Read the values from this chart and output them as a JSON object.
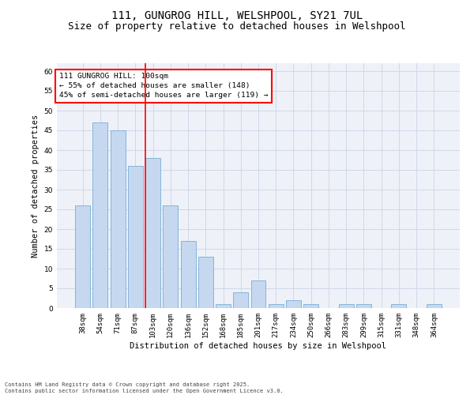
{
  "title_line1": "111, GUNGROG HILL, WELSHPOOL, SY21 7UL",
  "title_line2": "Size of property relative to detached houses in Welshpool",
  "xlabel": "Distribution of detached houses by size in Welshpool",
  "ylabel": "Number of detached properties",
  "categories": [
    "38sqm",
    "54sqm",
    "71sqm",
    "87sqm",
    "103sqm",
    "120sqm",
    "136sqm",
    "152sqm",
    "168sqm",
    "185sqm",
    "201sqm",
    "217sqm",
    "234sqm",
    "250sqm",
    "266sqm",
    "283sqm",
    "299sqm",
    "315sqm",
    "331sqm",
    "348sqm",
    "364sqm"
  ],
  "values": [
    26,
    47,
    45,
    36,
    38,
    26,
    17,
    13,
    1,
    4,
    7,
    1,
    2,
    1,
    0,
    1,
    1,
    0,
    1,
    0,
    1
  ],
  "bar_color": "#c5d8f0",
  "bar_edge_color": "#7aadd4",
  "vline_x": 4,
  "ylim": [
    0,
    62
  ],
  "yticks": [
    0,
    5,
    10,
    15,
    20,
    25,
    30,
    35,
    40,
    45,
    50,
    55,
    60
  ],
  "annotation_text": "111 GUNGROG HILL: 100sqm\n← 55% of detached houses are smaller (148)\n45% of semi-detached houses are larger (119) →",
  "annotation_box_color": "white",
  "annotation_box_edge_color": "red",
  "vline_color": "red",
  "grid_color": "#d0d8e8",
  "background_color": "#eef2f8",
  "footer_line1": "Contains HM Land Registry data © Crown copyright and database right 2025.",
  "footer_line2": "Contains public sector information licensed under the Open Government Licence v3.0.",
  "title_fontsize": 10,
  "subtitle_fontsize": 9,
  "label_fontsize": 7.5,
  "tick_fontsize": 6.5,
  "annotation_fontsize": 6.8,
  "footer_fontsize": 5.0
}
